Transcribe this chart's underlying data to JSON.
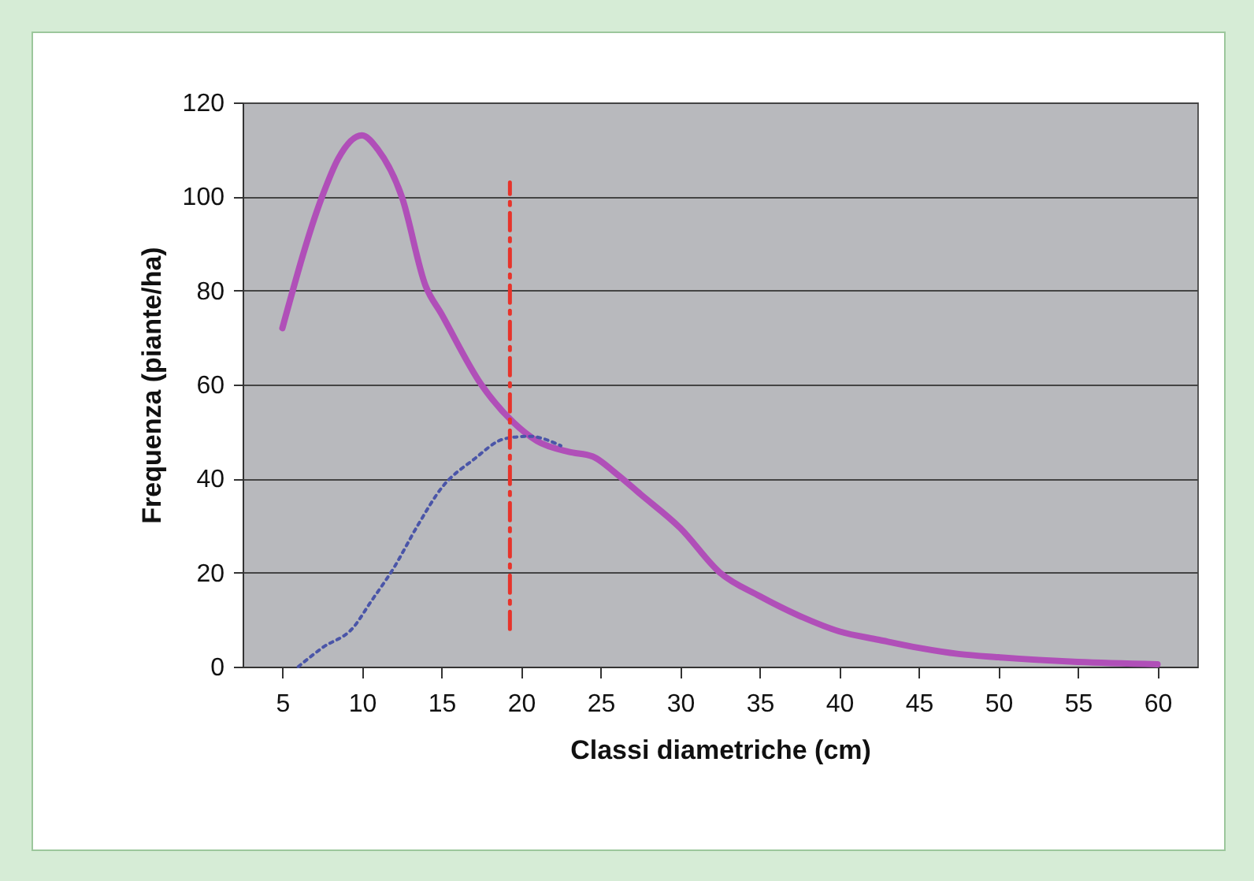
{
  "chart_data": {
    "type": "line",
    "xlabel": "Classi diametriche (cm)",
    "ylabel": "Frequenza (piante/ha)",
    "xlim": [
      2.5,
      62.5
    ],
    "xticks": [
      5,
      10,
      15,
      20,
      25,
      30,
      35,
      40,
      45,
      50,
      55,
      60
    ],
    "ylim": [
      0,
      120
    ],
    "yticks": [
      0,
      20,
      40,
      60,
      80,
      100,
      120
    ],
    "grid": "y",
    "marker": "none",
    "series": [
      {
        "color": "#b04fb8",
        "line_style": "solid",
        "x": [
          5,
          7.5,
          8.5,
          10,
          11,
          12.5,
          14,
          15,
          17.5,
          19.5,
          21,
          23,
          24.5,
          26,
          27.5,
          30,
          32.5,
          35,
          37.5,
          40,
          42.5,
          45,
          47.5,
          50,
          55,
          60
        ],
        "values": [
          72,
          100,
          108,
          113,
          110,
          100,
          81,
          75,
          60,
          52,
          48,
          45.7,
          44.7,
          41,
          36.7,
          29.5,
          20,
          15,
          10.8,
          7.5,
          5.7,
          4,
          2.7,
          2,
          1,
          0.5
        ]
      },
      {
        "color": "#4a55a8",
        "line_style": "dotted",
        "x": [
          6,
          7.5,
          9.5,
          10.5,
          12,
          13.5,
          15,
          17,
          19,
          20.5,
          22.5
        ],
        "values": [
          0,
          4,
          8.5,
          13.5,
          21,
          30,
          38,
          44,
          48.5,
          49,
          47
        ]
      },
      {
        "color": "#e8332a",
        "line_style": "dashed",
        "x": [
          19.3,
          19.3
        ],
        "values": [
          8,
          103
        ]
      }
    ]
  }
}
